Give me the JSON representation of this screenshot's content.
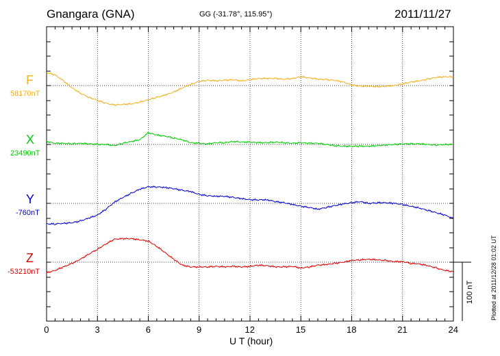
{
  "header": {
    "station": "Gnangara (GNA)",
    "coords": "GG (-31.78°, 115.95°)",
    "date": "2011/11/27"
  },
  "footer": {
    "plotted": "Plotted at 2011/12/28 01:02 UT",
    "scale_label": "100 nT"
  },
  "chart_data": {
    "type": "line",
    "title": "Gnangara (GNA)",
    "xlabel": "U T (hour)",
    "ylabel": "",
    "xlim": [
      0,
      24
    ],
    "x_ticks": [
      "0",
      "3",
      "6",
      "9",
      "12",
      "15",
      "18",
      "21",
      "24"
    ],
    "scale_bar_nT": 100,
    "grid": "dotted",
    "x": [
      0,
      0.5,
      1,
      1.5,
      2,
      2.5,
      3,
      3.5,
      4,
      4.5,
      5,
      5.5,
      6,
      6.5,
      7,
      7.5,
      8,
      8.5,
      9,
      9.5,
      10,
      10.5,
      11,
      11.5,
      12,
      12.5,
      13,
      13.5,
      14,
      14.5,
      15,
      15.5,
      16,
      16.5,
      17,
      17.5,
      18,
      18.5,
      19,
      19.5,
      20,
      20.5,
      21,
      21.5,
      22,
      22.5,
      23,
      23.5,
      24
    ],
    "series": [
      {
        "name": "F",
        "baseline": "58170nT",
        "color": "#f0b020",
        "values": [
          22,
          18,
          8,
          -4,
          -13,
          -20,
          -25,
          -30,
          -33,
          -32,
          -31,
          -28,
          -24,
          -20,
          -16,
          -11,
          -4,
          2,
          7,
          9,
          8,
          9,
          10,
          8,
          10,
          12,
          12,
          12,
          11,
          12,
          15,
          13,
          11,
          10,
          9,
          6,
          1,
          -1,
          -1,
          -2,
          -1,
          0,
          3,
          6,
          8,
          11,
          14,
          15,
          15
        ]
      },
      {
        "name": "X",
        "baseline": "23490nT",
        "color": "#00cc00",
        "values": [
          5,
          2,
          2,
          1,
          2,
          1,
          0,
          0,
          -2,
          2,
          5,
          8,
          20,
          16,
          14,
          11,
          8,
          3,
          2,
          1,
          3,
          3,
          5,
          4,
          4,
          3,
          3,
          4,
          3,
          2,
          3,
          2,
          2,
          0,
          -2,
          -3,
          -3,
          -3,
          -3,
          -2,
          -1,
          0,
          1,
          1,
          1,
          0,
          -1,
          0,
          0
        ]
      },
      {
        "name": "Y",
        "baseline": "-760nT",
        "color": "#0000cc",
        "values": [
          -35,
          -35,
          -34,
          -33,
          -30,
          -25,
          -20,
          -10,
          2,
          10,
          17,
          24,
          28,
          28,
          27,
          25,
          22,
          20,
          15,
          13,
          12,
          12,
          10,
          8,
          6,
          6,
          6,
          3,
          1,
          -2,
          -5,
          -7,
          -10,
          -7,
          -4,
          -1,
          1,
          3,
          0,
          1,
          1,
          0,
          -2,
          -5,
          -8,
          -12,
          -16,
          -20,
          -26
        ]
      },
      {
        "name": "Z",
        "baseline": "-53210nT",
        "color": "#dd0000",
        "values": [
          -18,
          -14,
          -8,
          -2,
          5,
          14,
          22,
          31,
          39,
          40,
          40,
          38,
          36,
          27,
          16,
          5,
          -5,
          -8,
          -8,
          -8,
          -7,
          -8,
          -7,
          -8,
          -7,
          -5,
          -6,
          -8,
          -8,
          -7,
          -10,
          -8,
          -5,
          -4,
          -2,
          0,
          3,
          4,
          5,
          4,
          3,
          1,
          1,
          -2,
          -3,
          -6,
          -10,
          -14,
          -16
        ]
      }
    ]
  }
}
